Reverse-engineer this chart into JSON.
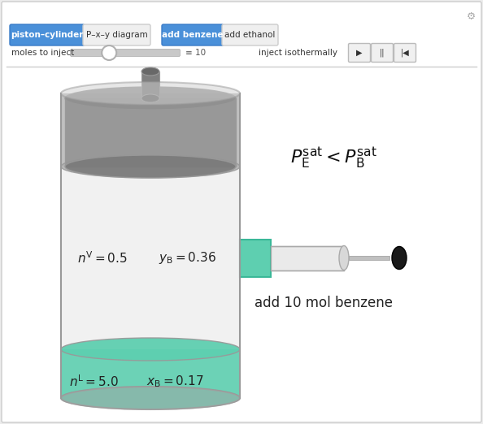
{
  "bg_color": "#ececec",
  "panel_bg": "#ffffff",
  "cylinder_color": "#d8d8d8",
  "cylinder_edge": "#999999",
  "liquid_color": "#5ecfb0",
  "liquid_edge": "#3ab898",
  "vapor_color": "#b0b0b0",
  "piston_color": "#888888",
  "piston_edge": "#666666",
  "rod_color": "#777777",
  "nV_text": "$n^\\mathrm{V} = 0.5$",
  "yB_text": "$y_\\mathrm{B} = 0.36$",
  "nL_text": "$n^\\mathrm{L} = 5.0$",
  "xB_text": "$x_\\mathrm{B} = 0.17$",
  "add_label": "add 10 mol benzene",
  "pressure_text": "$P_\\mathrm{E}^\\mathrm{sat} < P_\\mathrm{B}^\\mathrm{sat}$",
  "btn1_label": "piston–cylinder",
  "btn2_label": "P–x–y diagram",
  "btn3_label": "add benzene",
  "btn4_label": "add ethanol",
  "btn_active_color": "#4a90d9",
  "btn_active_edge": "#3a7bc8",
  "btn_inactive_color": "#efefef",
  "btn_inactive_edge": "#cccccc",
  "slider_label": "moles to inject",
  "slider_value": "10",
  "inject_label": "inject isothermally"
}
